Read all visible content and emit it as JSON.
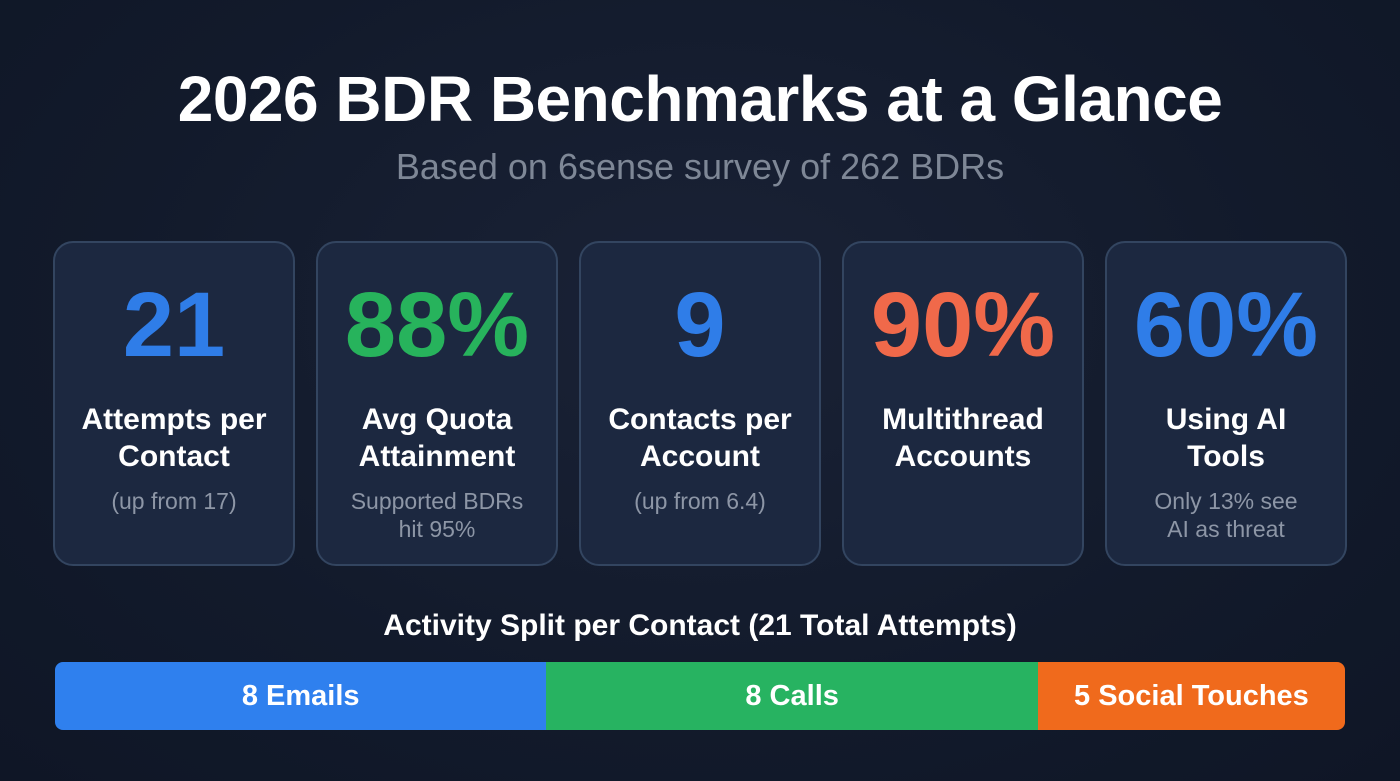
{
  "header": {
    "title": "2026 BDR Benchmarks at a Glance",
    "subtitle": "Based on 6sense survey of 262 BDRs"
  },
  "cards": [
    {
      "stat": "21",
      "label_line1": "Attempts per",
      "label_line2": "Contact",
      "note_line1": "(up from 17)",
      "note_line2": "",
      "color": "#2f7de8"
    },
    {
      "stat": "88%",
      "label_line1": "Avg Quota",
      "label_line2": "Attainment",
      "note_line1": "Supported BDRs",
      "note_line2": "hit 95%",
      "color": "#27b35c"
    },
    {
      "stat": "9",
      "label_line1": "Contacts per",
      "label_line2": "Account",
      "note_line1": "(up from 6.4)",
      "note_line2": "",
      "color": "#2f7de8"
    },
    {
      "stat": "90%",
      "label_line1": "Multithread",
      "label_line2": "Accounts",
      "note_line1": "",
      "note_line2": "",
      "color": "#f0694a"
    },
    {
      "stat": "60%",
      "label_line1": "Using AI",
      "label_line2": "Tools",
      "note_line1": "Only 13% see",
      "note_line2": "AI as threat",
      "color": "#2f7de8"
    }
  ],
  "activity_split": {
    "title": "Activity Split per Contact (21 Total Attempts)",
    "total": 21,
    "segments": [
      {
        "label": "8 Emails",
        "value": 8,
        "color": "#2f80ee"
      },
      {
        "label": "8 Calls",
        "value": 8,
        "color": "#27b361"
      },
      {
        "label": "5 Social Touches",
        "value": 5,
        "color": "#f06a1c"
      }
    ]
  }
}
